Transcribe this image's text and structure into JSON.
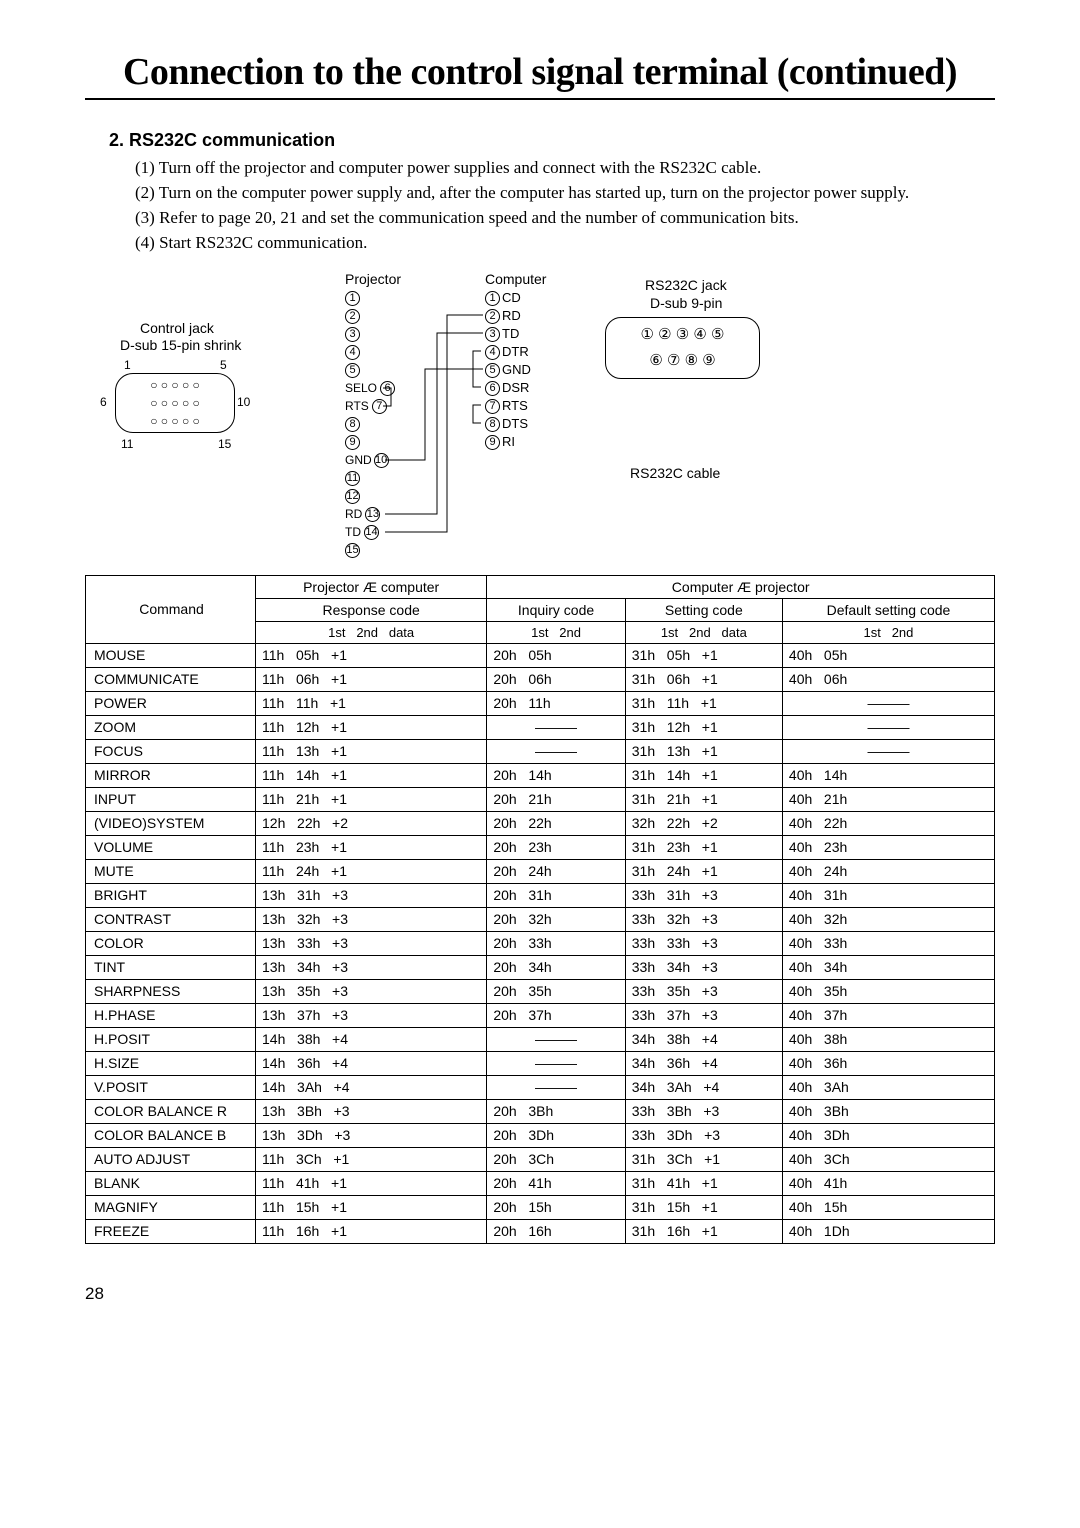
{
  "title": "Connection to the control signal terminal (continued)",
  "section": "2.  RS232C communication",
  "steps": [
    "(1) Turn off the projector and computer power supplies and connect with the RS232C cable.",
    "(2) Turn on the computer power supply and, after the computer has started up, turn on the projector power supply.",
    "(3) Refer to page 20, 21 and set the communication speed and the number of communication bits.",
    "(4) Start RS232C communication."
  ],
  "diagram": {
    "labels": {
      "projector": "Projector",
      "computer": "Computer",
      "control_jack": "Control jack",
      "dsub15": "D-sub 15-pin shrink",
      "rs232_jack": "RS232C jack",
      "dsub9": "D-sub 9-pin",
      "rs232_cable": "RS232C cable"
    },
    "corner_nums": {
      "tl": "1",
      "tr": "5",
      "ml": "6",
      "mr": "10",
      "bl": "11",
      "br": "15"
    },
    "proj_labels": {
      "selo": "SELO",
      "rts": "RTS",
      "gnd": "GND",
      "rd": "RD",
      "td": "TD"
    },
    "comp_labels": {
      "cd": "CD",
      "rd": "RD",
      "td": "TD",
      "dtr": "DTR",
      "gnd": "GND",
      "dsr": "DSR",
      "rts": "RTS",
      "dts": "DTS",
      "ri": "RI"
    },
    "jack9_row1": "①  ②  ③  ④  ⑤",
    "jack9_row2": "⑥  ⑦  ⑧  ⑨"
  },
  "table": {
    "head": {
      "p2c": "Projector Æ computer",
      "c2p": "Computer Æ projector",
      "cmd": "Command",
      "resp": "Response code",
      "inq": "Inquiry code",
      "set": "Setting code",
      "def": "Default setting code",
      "sub12d": "1st   2nd   data",
      "sub12": "1st   2nd"
    },
    "rows": [
      {
        "cmd": "MOUSE",
        "r": "11h   05h   +1",
        "i": "20h   05h",
        "s": "31h   05h   +1",
        "d": "40h   05h"
      },
      {
        "cmd": "COMMUNICATE",
        "r": "11h   06h   +1",
        "i": "20h   06h",
        "s": "31h   06h   +1",
        "d": "40h   06h"
      },
      {
        "cmd": "POWER",
        "r": "11h   11h   +1",
        "i": "20h   11h",
        "s": "31h   11h   +1",
        "d": "——"
      },
      {
        "cmd": "ZOOM",
        "r": "11h   12h   +1",
        "i": "——",
        "s": "31h   12h   +1",
        "d": "——"
      },
      {
        "cmd": "FOCUS",
        "r": "11h   13h   +1",
        "i": "——",
        "s": "31h   13h   +1",
        "d": "——"
      },
      {
        "cmd": "MIRROR",
        "r": "11h   14h   +1",
        "i": "20h   14h",
        "s": "31h   14h   +1",
        "d": "40h   14h"
      },
      {
        "cmd": "INPUT",
        "r": "11h   21h   +1",
        "i": "20h   21h",
        "s": "31h   21h   +1",
        "d": "40h   21h"
      },
      {
        "cmd": "(VIDEO)SYSTEM",
        "r": "12h   22h   +2",
        "i": "20h   22h",
        "s": "32h   22h   +2",
        "d": "40h   22h"
      },
      {
        "cmd": "VOLUME",
        "r": "11h   23h   +1",
        "i": "20h   23h",
        "s": "31h   23h   +1",
        "d": "40h   23h"
      },
      {
        "cmd": "MUTE",
        "r": "11h   24h   +1",
        "i": "20h   24h",
        "s": "31h   24h   +1",
        "d": "40h   24h"
      },
      {
        "cmd": "BRIGHT",
        "r": "13h   31h   +3",
        "i": "20h   31h",
        "s": "33h   31h   +3",
        "d": "40h   31h"
      },
      {
        "cmd": "CONTRAST",
        "r": "13h   32h   +3",
        "i": "20h   32h",
        "s": "33h   32h   +3",
        "d": "40h   32h"
      },
      {
        "cmd": "COLOR",
        "r": "13h   33h   +3",
        "i": "20h   33h",
        "s": "33h   33h   +3",
        "d": "40h   33h"
      },
      {
        "cmd": "TINT",
        "r": "13h   34h   +3",
        "i": "20h   34h",
        "s": "33h   34h   +3",
        "d": "40h   34h"
      },
      {
        "cmd": "SHARPNESS",
        "r": "13h   35h   +3",
        "i": "20h   35h",
        "s": "33h   35h   +3",
        "d": "40h   35h"
      },
      {
        "cmd": "H.PHASE",
        "r": "13h   37h   +3",
        "i": "20h   37h",
        "s": "33h   37h   +3",
        "d": "40h   37h"
      },
      {
        "cmd": "H.POSIT",
        "r": "14h   38h   +4",
        "i": "——",
        "s": "34h   38h   +4",
        "d": "40h   38h"
      },
      {
        "cmd": "H.SIZE",
        "r": "14h   36h   +4",
        "i": "——",
        "s": "34h   36h   +4",
        "d": "40h   36h"
      },
      {
        "cmd": "V.POSIT",
        "r": "14h   3Ah   +4",
        "i": "——",
        "s": "34h   3Ah   +4",
        "d": "40h   3Ah"
      },
      {
        "cmd": "COLOR BALANCE R",
        "r": "13h   3Bh   +3",
        "i": "20h   3Bh",
        "s": "33h   3Bh   +3",
        "d": "40h   3Bh"
      },
      {
        "cmd": "COLOR BALANCE B",
        "r": "13h   3Dh   +3",
        "i": "20h   3Dh",
        "s": "33h   3Dh   +3",
        "d": "40h   3Dh"
      },
      {
        "cmd": "AUTO ADJUST",
        "r": "11h   3Ch   +1",
        "i": "20h   3Ch",
        "s": "31h   3Ch   +1",
        "d": "40h   3Ch"
      },
      {
        "cmd": "BLANK",
        "r": "11h   41h   +1",
        "i": "20h   41h",
        "s": "31h   41h   +1",
        "d": "40h   41h"
      },
      {
        "cmd": "MAGNIFY",
        "r": "11h   15h   +1",
        "i": "20h   15h",
        "s": "31h   15h   +1",
        "d": "40h   15h"
      },
      {
        "cmd": "FREEZE",
        "r": "11h   16h   +1",
        "i": "20h   16h",
        "s": "31h   16h   +1",
        "d": "40h   1Dh"
      }
    ]
  },
  "pagenum": "28"
}
